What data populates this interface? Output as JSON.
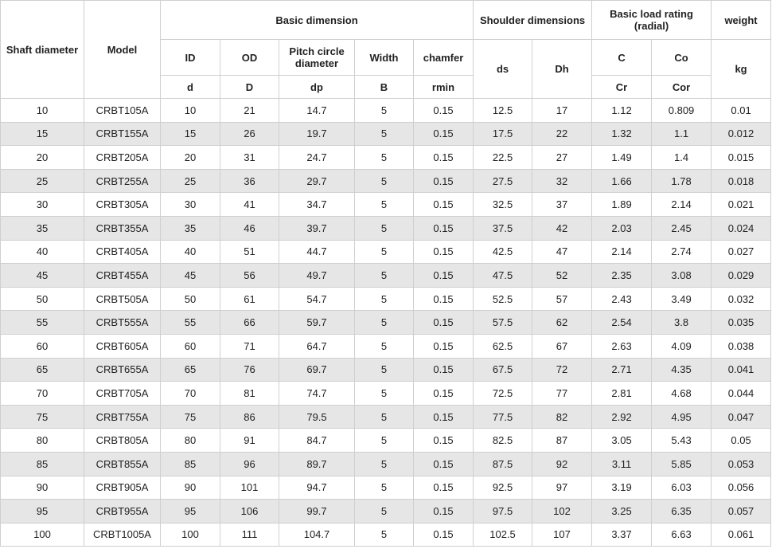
{
  "table": {
    "header": {
      "shaft_diameter": "Shaft diameter",
      "model": "Model",
      "basic_dimension": "Basic dimension",
      "shoulder_dimensions": "Shoulder dimensions",
      "basic_load_rating": "Basic load rating (radial)",
      "weight": "weight",
      "sub": [
        "ID",
        "OD",
        "Pitch circle diameter",
        "Width",
        "chamfer",
        "ds",
        "Dh",
        "C",
        "Co",
        "kg"
      ],
      "symbols": [
        "d",
        "D",
        "dp",
        "B",
        "rmin",
        "Cr",
        "Cor"
      ]
    },
    "rows": [
      [
        "10",
        "CRBT105A",
        "10",
        "21",
        "14.7",
        "5",
        "0.15",
        "12.5",
        "17",
        "1.12",
        "0.809",
        "0.01"
      ],
      [
        "15",
        "CRBT155A",
        "15",
        "26",
        "19.7",
        "5",
        "0.15",
        "17.5",
        "22",
        "1.32",
        "1.1",
        "0.012"
      ],
      [
        "20",
        "CRBT205A",
        "20",
        "31",
        "24.7",
        "5",
        "0.15",
        "22.5",
        "27",
        "1.49",
        "1.4",
        "0.015"
      ],
      [
        "25",
        "CRBT255A",
        "25",
        "36",
        "29.7",
        "5",
        "0.15",
        "27.5",
        "32",
        "1.66",
        "1.78",
        "0.018"
      ],
      [
        "30",
        "CRBT305A",
        "30",
        "41",
        "34.7",
        "5",
        "0.15",
        "32.5",
        "37",
        "1.89",
        "2.14",
        "0.021"
      ],
      [
        "35",
        "CRBT355A",
        "35",
        "46",
        "39.7",
        "5",
        "0.15",
        "37.5",
        "42",
        "2.03",
        "2.45",
        "0.024"
      ],
      [
        "40",
        "CRBT405A",
        "40",
        "51",
        "44.7",
        "5",
        "0.15",
        "42.5",
        "47",
        "2.14",
        "2.74",
        "0.027"
      ],
      [
        "45",
        "CRBT455A",
        "45",
        "56",
        "49.7",
        "5",
        "0.15",
        "47.5",
        "52",
        "2.35",
        "3.08",
        "0.029"
      ],
      [
        "50",
        "CRBT505A",
        "50",
        "61",
        "54.7",
        "5",
        "0.15",
        "52.5",
        "57",
        "2.43",
        "3.49",
        "0.032"
      ],
      [
        "55",
        "CRBT555A",
        "55",
        "66",
        "59.7",
        "5",
        "0.15",
        "57.5",
        "62",
        "2.54",
        "3.8",
        "0.035"
      ],
      [
        "60",
        "CRBT605A",
        "60",
        "71",
        "64.7",
        "5",
        "0.15",
        "62.5",
        "67",
        "2.63",
        "4.09",
        "0.038"
      ],
      [
        "65",
        "CRBT655A",
        "65",
        "76",
        "69.7",
        "5",
        "0.15",
        "67.5",
        "72",
        "2.71",
        "4.35",
        "0.041"
      ],
      [
        "70",
        "CRBT705A",
        "70",
        "81",
        "74.7",
        "5",
        "0.15",
        "72.5",
        "77",
        "2.81",
        "4.68",
        "0.044"
      ],
      [
        "75",
        "CRBT755A",
        "75",
        "86",
        "79.5",
        "5",
        "0.15",
        "77.5",
        "82",
        "2.92",
        "4.95",
        "0.047"
      ],
      [
        "80",
        "CRBT805A",
        "80",
        "91",
        "84.7",
        "5",
        "0.15",
        "82.5",
        "87",
        "3.05",
        "5.43",
        "0.05"
      ],
      [
        "85",
        "CRBT855A",
        "85",
        "96",
        "89.7",
        "5",
        "0.15",
        "87.5",
        "92",
        "3.11",
        "5.85",
        "0.053"
      ],
      [
        "90",
        "CRBT905A",
        "90",
        "101",
        "94.7",
        "5",
        "0.15",
        "92.5",
        "97",
        "3.19",
        "6.03",
        "0.056"
      ],
      [
        "95",
        "CRBT955A",
        "95",
        "106",
        "99.7",
        "5",
        "0.15",
        "97.5",
        "102",
        "3.25",
        "6.35",
        "0.057"
      ],
      [
        "100",
        "CRBT1005A",
        "100",
        "111",
        "104.7",
        "5",
        "0.15",
        "102.5",
        "107",
        "3.37",
        "6.63",
        "0.061"
      ]
    ]
  }
}
